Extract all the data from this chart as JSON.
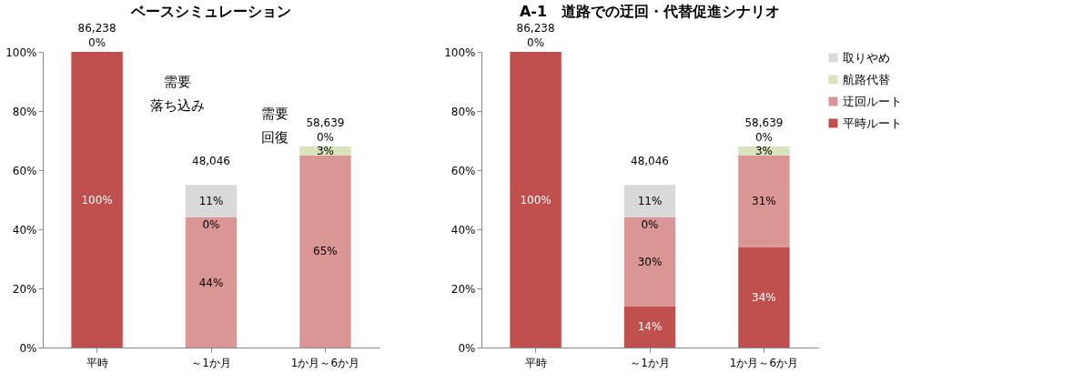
{
  "chart_data": [
    {
      "type": "bar",
      "stacked": true,
      "title": "ベースシミュレーション",
      "categories": [
        "平時",
        "～1か月",
        "1か月～6か月"
      ],
      "ylim": [
        0,
        100
      ],
      "yticks": [
        {
          "value": 0,
          "label": "0%"
        },
        {
          "value": 20,
          "label": "20%"
        },
        {
          "value": 40,
          "label": "40%"
        },
        {
          "value": 60,
          "label": "60%"
        },
        {
          "value": 80,
          "label": "80%"
        },
        {
          "value": 100,
          "label": "100%"
        }
      ],
      "series": [
        {
          "name": "平時ルート",
          "color": "#c0504d",
          "values": [
            100,
            0,
            0
          ],
          "value_labels": [
            "100%",
            null,
            null
          ]
        },
        {
          "name": "迂回ルート",
          "color": "#d99694",
          "values": [
            0,
            44,
            65
          ],
          "value_labels": [
            null,
            "44%",
            "65%"
          ]
        },
        {
          "name": "航路代替",
          "color": "#d7e4bd",
          "values": [
            0,
            0,
            3
          ],
          "value_labels": [
            null,
            "0%",
            "3%"
          ]
        },
        {
          "name": "取りやめ",
          "color": "#d9d9d9",
          "values": [
            0,
            11,
            0
          ],
          "value_labels": [
            "0%",
            "11%",
            "0%"
          ]
        }
      ],
      "annotations": [
        {
          "text": "86,238",
          "x": "平時",
          "y": 100
        },
        {
          "text": "48,046",
          "x": "～1か月",
          "y": 55
        },
        {
          "text": "58,639",
          "x": "1か月～6か月",
          "y": 68
        },
        "需要",
        "落ち込み",
        "需要",
        "回復"
      ],
      "grid": false,
      "legend": "right"
    },
    {
      "type": "bar",
      "stacked": true,
      "title": "A-1　道路での迂回・代替促進シナリオ",
      "categories": [
        "平時",
        "～1か月",
        "1か月～6か月"
      ],
      "ylim": [
        0,
        100
      ],
      "yticks": [
        {
          "value": 0,
          "label": "0%"
        },
        {
          "value": 20,
          "label": "20%"
        },
        {
          "value": 40,
          "label": "40%"
        },
        {
          "value": 60,
          "label": "60%"
        },
        {
          "value": 80,
          "label": "80%"
        },
        {
          "value": 100,
          "label": "100%"
        }
      ],
      "series": [
        {
          "name": "平時ルート",
          "color": "#c0504d",
          "values": [
            100,
            14,
            34
          ],
          "value_labels": [
            "100%",
            "14%",
            "34%"
          ]
        },
        {
          "name": "迂回ルート",
          "color": "#d99694",
          "values": [
            0,
            30,
            31
          ],
          "value_labels": [
            null,
            "30%",
            "31%"
          ]
        },
        {
          "name": "航路代替",
          "color": "#d7e4bd",
          "values": [
            0,
            0,
            3
          ],
          "value_labels": [
            null,
            "0%",
            "3%"
          ]
        },
        {
          "name": "取りやめ",
          "color": "#d9d9d9",
          "values": [
            0,
            11,
            0
          ],
          "value_labels": [
            "0%",
            "11%",
            "0%"
          ]
        }
      ],
      "annotations": [
        {
          "text": "86,238",
          "x": "平時",
          "y": 100
        },
        {
          "text": "48,046",
          "x": "～1か月",
          "y": 55
        },
        {
          "text": "58,639",
          "x": "1か月～6か月",
          "y": 68
        }
      ],
      "grid": false,
      "legend": "right"
    }
  ]
}
